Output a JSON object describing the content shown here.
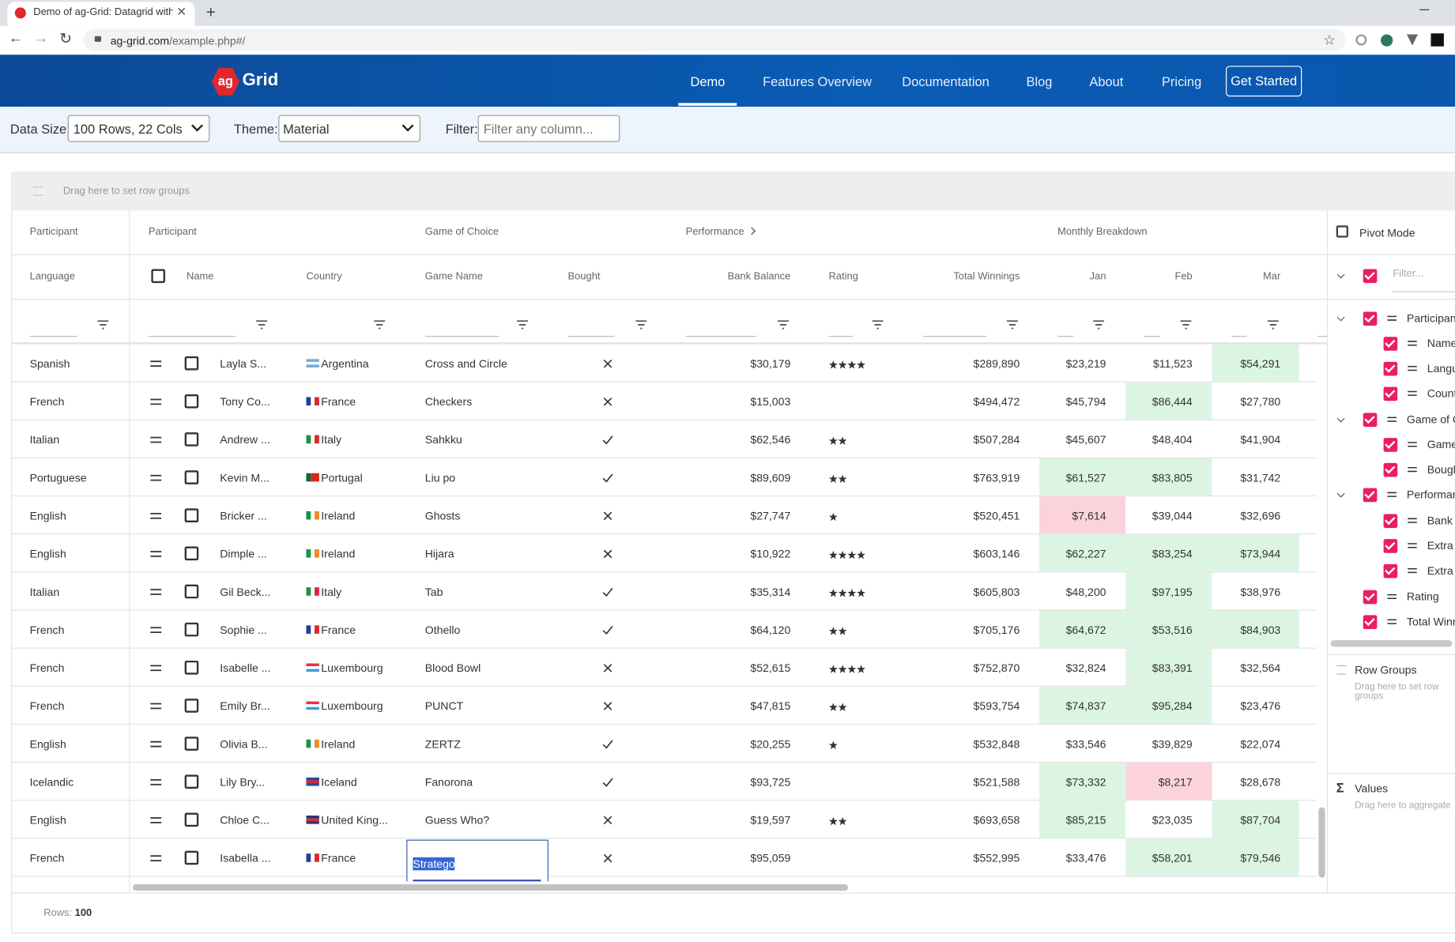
{
  "browser": {
    "tab_title": "Demo of ag-Grid: Datagrid with",
    "url_host": "ag-grid.com",
    "url_path": "/example.php#/"
  },
  "nav": {
    "logo_badge": "ag",
    "logo": "Grid",
    "links": [
      "Demo",
      "Features Overview",
      "Documentation",
      "Blog",
      "About",
      "Pricing"
    ],
    "cta": "Get Started"
  },
  "toolbar": {
    "data_size_label": "Data Size:",
    "data_size": "100 Rows, 22 Cols",
    "theme_label": "Theme:",
    "theme": "Material",
    "filter_label": "Filter:",
    "filter_placeholder": "Filter any column..."
  },
  "grid": {
    "row_group_hint": "Drag here to set row groups",
    "group_headers": [
      "Participant",
      "Participant",
      "Game of Choice",
      "Performance",
      "Monthly Breakdown"
    ],
    "columns": [
      "Language",
      "Name",
      "Country",
      "Game Name",
      "Bought",
      "Bank Balance",
      "Rating",
      "Total Winnings",
      "Jan",
      "Feb",
      "Mar"
    ],
    "rows": [
      {
        "language": "Spanish",
        "name": "Layla S...",
        "country": "Argentina",
        "flag": {
          "dir": "h",
          "colors": [
            "#75aadb",
            "#ffffff",
            "#75aadb"
          ]
        },
        "game": "Cross and Circle",
        "bought": false,
        "bank": "$30,179",
        "rating": 4,
        "total": "$289,890",
        "jan": "$23,219",
        "feb": "$11,523",
        "mar": "$54,291"
      },
      {
        "language": "French",
        "name": "Tony Co...",
        "country": "France",
        "flag": {
          "dir": "v",
          "colors": [
            "#1f3f99",
            "#ffffff",
            "#e0262f"
          ]
        },
        "game": "Checkers",
        "bought": false,
        "bank": "$15,003",
        "rating": 0,
        "total": "$494,472",
        "jan": "$45,794",
        "feb": "$86,444",
        "mar": "$27,780"
      },
      {
        "language": "Italian",
        "name": "Andrew ...",
        "country": "Italy",
        "flag": {
          "dir": "v",
          "colors": [
            "#1b9346",
            "#ffffff",
            "#d62b35"
          ]
        },
        "game": "Sahkku",
        "bought": true,
        "bank": "$62,546",
        "rating": 2,
        "total": "$507,284",
        "jan": "$45,607",
        "feb": "$48,404",
        "mar": "$41,904"
      },
      {
        "language": "Portuguese",
        "name": "Kevin M...",
        "country": "Portugal",
        "flag": {
          "dir": "v",
          "colors": [
            "#0b6b2f",
            "#d9241b",
            "#d9241b"
          ]
        },
        "game": "Liu po",
        "bought": true,
        "bank": "$89,609",
        "rating": 2,
        "total": "$763,919",
        "jan": "$61,527",
        "feb": "$83,805",
        "mar": "$31,742"
      },
      {
        "language": "English",
        "name": "Bricker ...",
        "country": "Ireland",
        "flag": {
          "dir": "v",
          "colors": [
            "#1b9346",
            "#ffffff",
            "#f08a2b"
          ]
        },
        "game": "Ghosts",
        "bought": false,
        "bank": "$27,747",
        "rating": 1,
        "total": "$520,451",
        "jan": "$7,614",
        "feb": "$39,044",
        "mar": "$32,696"
      },
      {
        "language": "English",
        "name": "Dimple ...",
        "country": "Ireland",
        "flag": {
          "dir": "v",
          "colors": [
            "#1b9346",
            "#ffffff",
            "#f08a2b"
          ]
        },
        "game": "Hijara",
        "bought": false,
        "bank": "$10,922",
        "rating": 4,
        "total": "$603,146",
        "jan": "$62,227",
        "feb": "$83,254",
        "mar": "$73,944"
      },
      {
        "language": "Italian",
        "name": "Gil Beck...",
        "country": "Italy",
        "flag": {
          "dir": "v",
          "colors": [
            "#1b9346",
            "#ffffff",
            "#d62b35"
          ]
        },
        "game": "Tab",
        "bought": true,
        "bank": "$35,314",
        "rating": 4,
        "total": "$605,803",
        "jan": "$48,200",
        "feb": "$97,195",
        "mar": "$38,976"
      },
      {
        "language": "French",
        "name": "Sophie ...",
        "country": "France",
        "flag": {
          "dir": "v",
          "colors": [
            "#1f3f99",
            "#ffffff",
            "#e0262f"
          ]
        },
        "game": "Othello",
        "bought": true,
        "bank": "$64,120",
        "rating": 2,
        "total": "$705,176",
        "jan": "$64,672",
        "feb": "$53,516",
        "mar": "$84,903"
      },
      {
        "language": "French",
        "name": "Isabelle ...",
        "country": "Luxembourg",
        "flag": {
          "dir": "h",
          "colors": [
            "#e8333c",
            "#ffffff",
            "#3aa0dc"
          ]
        },
        "game": "Blood Bowl",
        "bought": false,
        "bank": "$52,615",
        "rating": 4,
        "total": "$752,870",
        "jan": "$32,824",
        "feb": "$83,391",
        "mar": "$32,564"
      },
      {
        "language": "French",
        "name": "Emily Br...",
        "country": "Luxembourg",
        "flag": {
          "dir": "h",
          "colors": [
            "#e8333c",
            "#ffffff",
            "#3aa0dc"
          ]
        },
        "game": "PUNCT",
        "bought": false,
        "bank": "$47,815",
        "rating": 2,
        "total": "$593,754",
        "jan": "$74,837",
        "feb": "$95,284",
        "mar": "$23,476"
      },
      {
        "language": "English",
        "name": "Olivia B...",
        "country": "Ireland",
        "flag": {
          "dir": "v",
          "colors": [
            "#1b9346",
            "#ffffff",
            "#f08a2b"
          ]
        },
        "game": "ZERTZ",
        "bought": true,
        "bank": "$20,255",
        "rating": 1,
        "total": "$532,848",
        "jan": "$33,546",
        "feb": "$39,829",
        "mar": "$22,074"
      },
      {
        "language": "Icelandic",
        "name": "Lily Bry...",
        "country": "Iceland",
        "flag": {
          "dir": "h",
          "colors": [
            "#1d4fa3",
            "#dc1e35",
            "#1d4fa3"
          ]
        },
        "game": "Fanorona",
        "bought": true,
        "bank": "$93,725",
        "rating": 0,
        "total": "$521,588",
        "jan": "$73,332",
        "feb": "$8,217",
        "mar": "$28,678"
      },
      {
        "language": "English",
        "name": "Chloe C...",
        "country": "United King...",
        "flag": {
          "dir": "h",
          "colors": [
            "#25357a",
            "#d22f3c",
            "#25357a"
          ]
        },
        "game": "Guess Who?",
        "bought": false,
        "bank": "$19,597",
        "rating": 2,
        "total": "$693,658",
        "jan": "$85,215",
        "feb": "$23,035",
        "mar": "$87,704"
      },
      {
        "language": "French",
        "name": "Isabella ...",
        "country": "France",
        "flag": {
          "dir": "v",
          "colors": [
            "#1f3f99",
            "#ffffff",
            "#e0262f"
          ]
        },
        "game": "Stratego",
        "bought": false,
        "bank": "$95,059",
        "rating": 0,
        "total": "$552,995",
        "jan": "$33,476",
        "feb": "$58,201",
        "mar": "$79,546"
      }
    ],
    "status_label": "Rows:",
    "status_count": "100"
  },
  "side_panel": {
    "pivot_mode": "Pivot Mode",
    "filter_placeholder": "Filter...",
    "tree": [
      {
        "label": "Participant",
        "level": 0,
        "group": true
      },
      {
        "label": "Name",
        "level": 1
      },
      {
        "label": "Langu",
        "level": 1
      },
      {
        "label": "Count",
        "level": 1
      },
      {
        "label": "Game of C",
        "level": 0,
        "group": true
      },
      {
        "label": "Game",
        "level": 1
      },
      {
        "label": "Bough",
        "level": 1
      },
      {
        "label": "Performan",
        "level": 0,
        "group": true
      },
      {
        "label": "Bank",
        "level": 1
      },
      {
        "label": "Extra",
        "level": 1
      },
      {
        "label": "Extra",
        "level": 1
      },
      {
        "label": "Rating",
        "level": 0
      },
      {
        "label": "Total Winn",
        "level": 0
      }
    ],
    "row_groups_title": "Row Groups",
    "row_groups_hint": "Drag here to set row groups",
    "values_title": "Values",
    "values_hint": "Drag here to aggregate"
  }
}
